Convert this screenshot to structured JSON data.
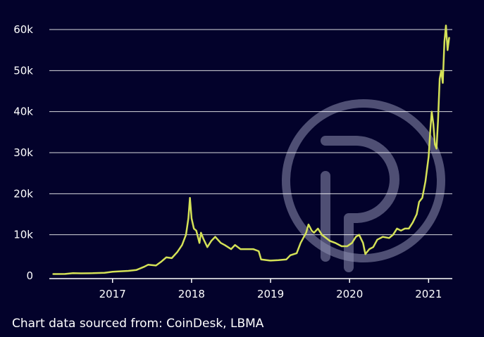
{
  "source_note": "Chart data sourced from: CoinDesk, LBMA",
  "colors": {
    "background": "#03022b",
    "line": "#d4e157",
    "grid": "#ffffff",
    "text": "#ffffff",
    "watermark": "#8e8fb0"
  },
  "watermark": {
    "name": "logo-watermark-icon"
  },
  "chart_data": {
    "type": "line",
    "title": "",
    "xlabel": "",
    "ylabel": "",
    "ylim": [
      0,
      60000
    ],
    "xlim": [
      2016.2,
      2021.3
    ],
    "yticks": [
      {
        "value": 0,
        "label": "0"
      },
      {
        "value": 10000,
        "label": "10k"
      },
      {
        "value": 20000,
        "label": "20k"
      },
      {
        "value": 30000,
        "label": "30k"
      },
      {
        "value": 40000,
        "label": "40k"
      },
      {
        "value": 50000,
        "label": "50k"
      },
      {
        "value": 60000,
        "label": "60k"
      }
    ],
    "xticks": [
      {
        "value": 2017,
        "label": "2017"
      },
      {
        "value": 2018,
        "label": "2018"
      },
      {
        "value": 2019,
        "label": "2019"
      },
      {
        "value": 2020,
        "label": "2020"
      },
      {
        "value": 2021,
        "label": "2021"
      }
    ],
    "grid": true,
    "series": [
      {
        "x": [
          2016.25,
          2016.4,
          2016.5,
          2016.6,
          2016.75,
          2016.9,
          2017.0,
          2017.1,
          2017.2,
          2017.3,
          2017.4,
          2017.45,
          2017.55,
          2017.62,
          2017.68,
          2017.75,
          2017.82,
          2017.88,
          2017.93,
          2017.96,
          2017.98,
          2018.0,
          2018.03,
          2018.06,
          2018.1,
          2018.12,
          2018.15,
          2018.2,
          2018.25,
          2018.3,
          2018.37,
          2018.42,
          2018.5,
          2018.55,
          2018.62,
          2018.7,
          2018.78,
          2018.85,
          2018.88,
          2018.95,
          2019.0,
          2019.1,
          2019.2,
          2019.25,
          2019.33,
          2019.38,
          2019.45,
          2019.48,
          2019.52,
          2019.55,
          2019.6,
          2019.65,
          2019.75,
          2019.82,
          2019.9,
          2019.97,
          2020.03,
          2020.08,
          2020.12,
          2020.17,
          2020.2,
          2020.25,
          2020.3,
          2020.35,
          2020.42,
          2020.5,
          2020.55,
          2020.6,
          2020.65,
          2020.7,
          2020.75,
          2020.8,
          2020.85,
          2020.88,
          2020.92,
          2020.96,
          2021.0,
          2021.02,
          2021.04,
          2021.06,
          2021.08,
          2021.1,
          2021.12,
          2021.14,
          2021.16,
          2021.18,
          2021.2,
          2021.22,
          2021.24,
          2021.26
        ],
        "values": [
          430,
          450,
          650,
          600,
          630,
          740,
          1000,
          1100,
          1200,
          1400,
          2200,
          2700,
          2500,
          3500,
          4500,
          4300,
          5800,
          7500,
          10000,
          14000,
          19000,
          14000,
          11500,
          11000,
          8000,
          10500,
          9000,
          7000,
          8500,
          9500,
          8000,
          7500,
          6500,
          7500,
          6500,
          6500,
          6500,
          6000,
          4000,
          3800,
          3700,
          3800,
          4000,
          5000,
          5500,
          8000,
          10500,
          12500,
          11000,
          10500,
          11500,
          10000,
          8500,
          8000,
          7200,
          7200,
          8000,
          9500,
          10000,
          8000,
          5300,
          6500,
          7000,
          8800,
          9500,
          9200,
          10000,
          11500,
          11000,
          11500,
          11500,
          13000,
          15000,
          18000,
          19000,
          23000,
          29000,
          35000,
          40000,
          37000,
          32000,
          31000,
          38000,
          48000,
          50000,
          47000,
          57000,
          61000,
          55000,
          58000
        ]
      }
    ]
  }
}
